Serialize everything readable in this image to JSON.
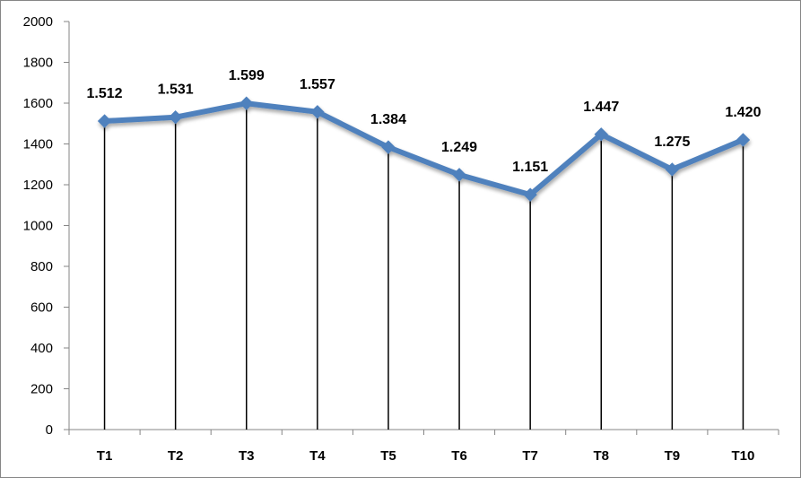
{
  "chart_data": {
    "type": "line",
    "categories": [
      "T1",
      "T2",
      "T3",
      "T4",
      "T5",
      "T6",
      "T7",
      "T8",
      "T9",
      "T10"
    ],
    "series": [
      {
        "values": [
          1512,
          1531,
          1599,
          1557,
          1384,
          1249,
          1151,
          1447,
          1275,
          1420
        ],
        "data_labels": [
          "1.512",
          "1.531",
          "1.599",
          "1.557",
          "1.384",
          "1.249",
          "1.151",
          "1.447",
          "1.275",
          "1.420"
        ],
        "color": "#4f81bd",
        "marker": "diamond",
        "drop_lines": true
      }
    ],
    "yticks": [
      "0",
      "200",
      "400",
      "600",
      "800",
      "1000",
      "1200",
      "1400",
      "1600",
      "1800",
      "2000"
    ],
    "ylim": [
      0,
      2000
    ],
    "grid": false,
    "legend": "none"
  }
}
